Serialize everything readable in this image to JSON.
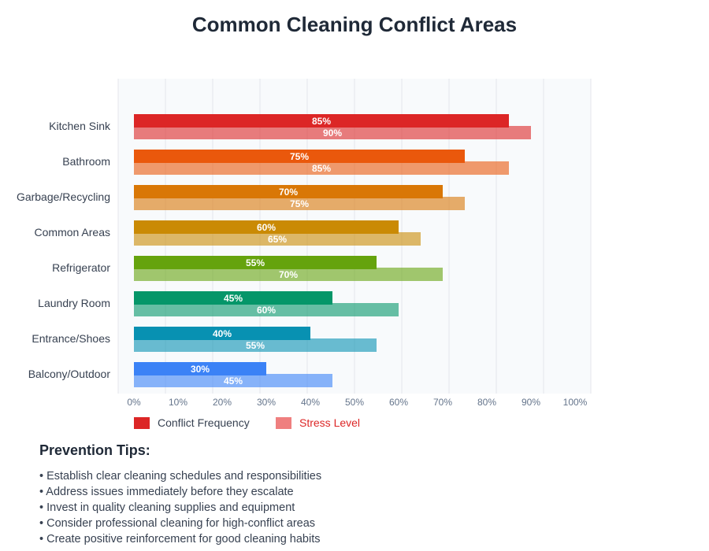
{
  "chart_data": {
    "type": "bar",
    "orientation": "horizontal",
    "title": "Common Cleaning Conflict Areas",
    "categories": [
      "Kitchen Sink",
      "Bathroom",
      "Garbage/Recycling",
      "Common Areas",
      "Refrigerator",
      "Laundry Room",
      "Entrance/Shoes",
      "Balcony/Outdoor"
    ],
    "series": [
      {
        "name": "Conflict Frequency",
        "values": [
          85,
          75,
          70,
          60,
          55,
          45,
          40,
          30
        ]
      },
      {
        "name": "Stress Level",
        "values": [
          90,
          85,
          75,
          65,
          70,
          60,
          55,
          45
        ]
      }
    ],
    "colors": [
      "#dc2626",
      "#ea580c",
      "#d97706",
      "#ca8a04",
      "#65a30d",
      "#059669",
      "#0891b2",
      "#3b82f6"
    ],
    "xticks": [
      "0%",
      "10%",
      "20%",
      "30%",
      "40%",
      "50%",
      "60%",
      "70%",
      "80%",
      "90%",
      "100%"
    ],
    "xlim": [
      0,
      100
    ],
    "grid": true,
    "legend_placement": "bottom-left",
    "legend": {
      "conflict_color": "#dc2626",
      "stress_color": "#ef7f7f",
      "stress_text_color": "#dc2626"
    }
  },
  "tips": {
    "heading": "Prevention Tips:",
    "items": [
      "• Establish clear cleaning schedules and responsibilities",
      "• Address issues immediately before they escalate",
      "• Invest in quality cleaning supplies and equipment",
      "• Consider professional cleaning for high-conflict areas",
      "• Create positive reinforcement for good cleaning habits"
    ]
  }
}
